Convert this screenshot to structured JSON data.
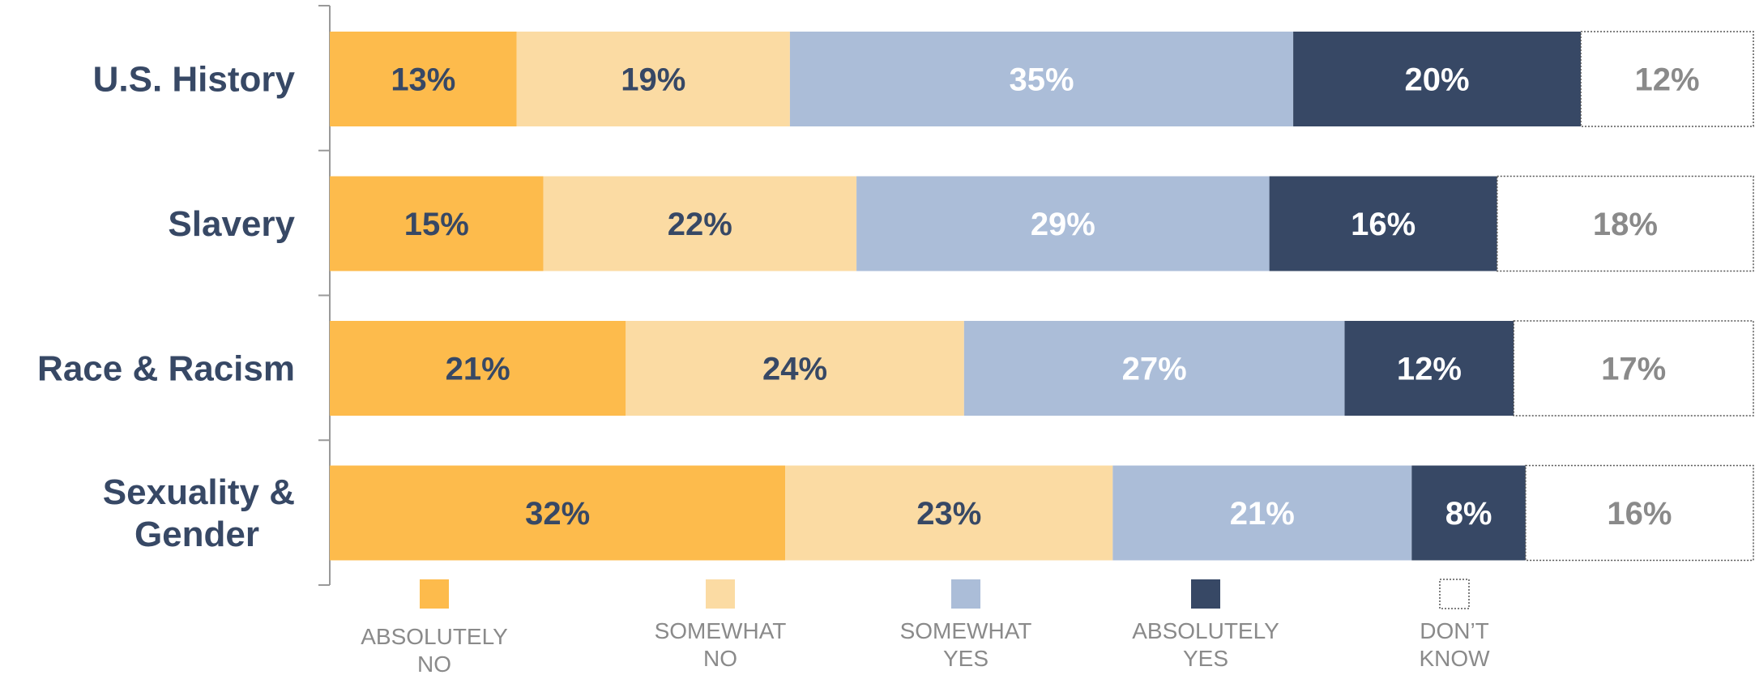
{
  "chart_data": {
    "type": "bar",
    "orientation": "horizontal",
    "stacked": true,
    "normalized": true,
    "categories": [
      "U.S. History",
      "Slavery",
      "Race & Racism",
      "Sexuality & Gender"
    ],
    "series": [
      {
        "name": "ABSOLUTELY NO",
        "color": "#fdbb4c",
        "label_color": "#374865",
        "values": [
          13,
          15,
          21,
          32
        ]
      },
      {
        "name": "SOMEWHAT NO",
        "color": "#fbdba3",
        "label_color": "#374865",
        "values": [
          19,
          22,
          24,
          23
        ]
      },
      {
        "name": "SOMEWHAT YES",
        "color": "#abbdd8",
        "label_color": "#ffffff",
        "values": [
          35,
          29,
          27,
          21
        ]
      },
      {
        "name": "ABSOLUTELY YES",
        "color": "#374865",
        "label_color": "#ffffff",
        "values": [
          20,
          16,
          12,
          8
        ]
      },
      {
        "name": "DON’T KNOW",
        "color": "#ffffff",
        "label_color": "#8a8a8a",
        "values": [
          12,
          18,
          17,
          16
        ]
      }
    ],
    "data_labels": [
      [
        "13%",
        "19%",
        "35%",
        "20%",
        "12%"
      ],
      [
        "15%",
        "22%",
        "29%",
        "16%",
        "18%"
      ],
      [
        "21%",
        "24%",
        "27%",
        "12%",
        "17%"
      ],
      [
        "32%",
        "23%",
        "21%",
        "8%",
        "16%"
      ]
    ],
    "title": "",
    "xlabel": "",
    "ylabel": "",
    "legend_position": "bottom",
    "grid": false
  }
}
